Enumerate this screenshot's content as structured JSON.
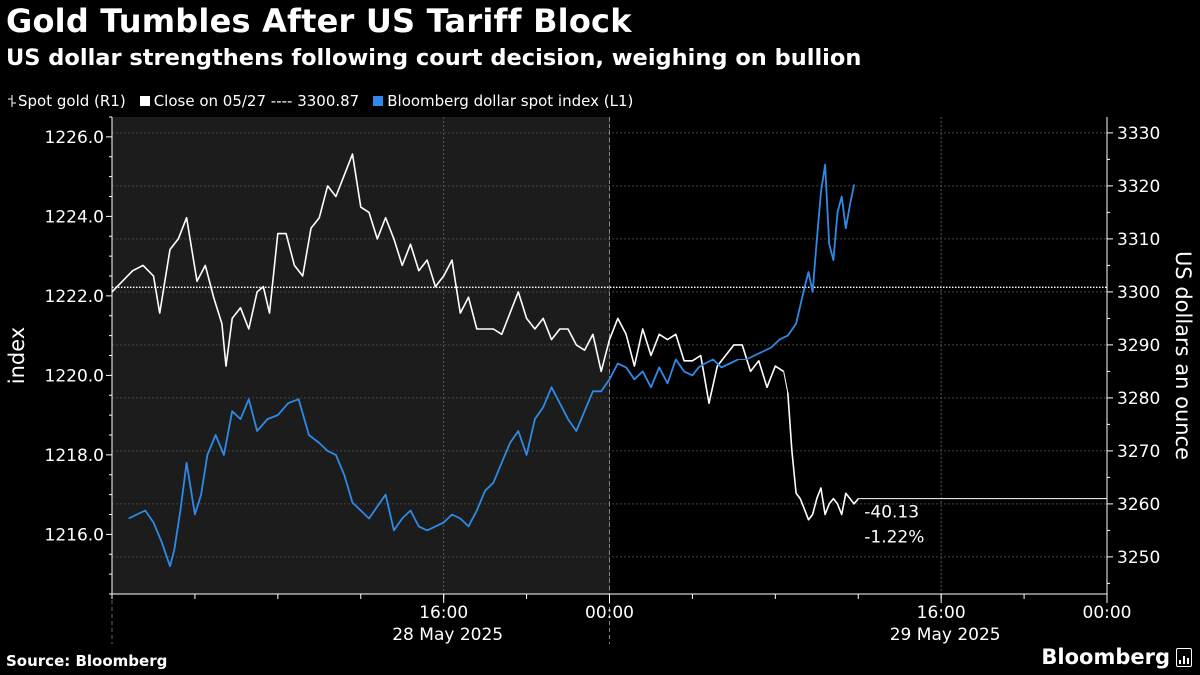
{
  "header": {
    "title": "Gold Tumbles After US Tariff Block",
    "subtitle": "US dollar strengthens following court decision, weighing on bullion"
  },
  "legend": [
    {
      "label": "Spot gold (R1)",
      "color": "#ffffff",
      "icon": "ohlc-bar-icon"
    },
    {
      "label": "Close on 05/27 ---- 3300.87",
      "color": "#ffffff",
      "icon": "square-icon"
    },
    {
      "label": "Bloomberg dollar spot index (L1)",
      "color": "#2e8ae6",
      "icon": "square-icon"
    }
  ],
  "footer": {
    "source": "Source: Bloomberg",
    "brand": "Bloomberg"
  },
  "chart_data": {
    "type": "line",
    "left_axis": {
      "label": "index",
      "ticks": [
        "1226.0",
        "1224.0",
        "1222.0",
        "1220.0",
        "1218.0",
        "1216.0"
      ],
      "tick_values": [
        1226,
        1224,
        1222,
        1220,
        1218,
        1216
      ],
      "range": [
        1214.5,
        1226.5
      ]
    },
    "right_axis": {
      "label": "US dollars an ounce",
      "ticks": [
        "3330",
        "3320",
        "3310",
        "3300",
        "3290",
        "3280",
        "3270",
        "3260",
        "3250"
      ],
      "tick_values": [
        3330,
        3320,
        3310,
        3300,
        3290,
        3280,
        3270,
        3260,
        3250
      ],
      "range": [
        3243,
        3333
      ]
    },
    "x_axis": {
      "range_hours": [
        0,
        48
      ],
      "time_ticks": [
        {
          "label": "16:00",
          "hour": 16
        },
        {
          "label": "00:00",
          "hour": 24
        },
        {
          "label": "16:00",
          "hour": 40
        },
        {
          "label": "00:00",
          "hour": 48
        }
      ],
      "day_labels": [
        {
          "label": "28 May 2025",
          "hour": 16
        },
        {
          "label": "29 May 2025",
          "hour": 40
        }
      ],
      "day_boundary_hour": 24,
      "note": "hours are from 00:00 on 28 May 2025"
    },
    "close_reference": {
      "label": "Close on 05/27",
      "value": 3300.87
    },
    "annotation": {
      "change": "-40.13",
      "change_pct": "-1.22%",
      "level": 3261
    },
    "series": [
      {
        "name": "Spot gold (R1)",
        "axis": "right",
        "color": "#ffffff",
        "x": [
          0.0,
          1.0,
          1.5,
          2.0,
          2.3,
          2.8,
          3.2,
          3.6,
          4.1,
          4.5,
          4.9,
          5.3,
          5.5,
          5.8,
          6.2,
          6.6,
          7.0,
          7.3,
          7.6,
          8.0,
          8.4,
          8.8,
          9.2,
          9.6,
          10.0,
          10.4,
          10.8,
          11.2,
          11.6,
          12.0,
          12.4,
          12.8,
          13.2,
          13.6,
          14.0,
          14.4,
          14.8,
          15.2,
          15.6,
          16.0,
          16.4,
          16.8,
          17.2,
          17.6,
          18.0,
          18.4,
          18.8,
          19.2,
          19.6,
          20.0,
          20.4,
          20.8,
          21.2,
          21.6,
          22.0,
          22.4,
          22.8,
          23.2,
          23.6,
          24.0,
          24.4,
          24.8,
          25.2,
          25.6,
          26.0,
          26.4,
          26.8,
          27.2,
          27.6,
          28.0,
          28.4,
          28.8,
          29.2,
          29.6,
          30.0,
          30.4,
          30.8,
          31.2,
          31.6,
          32.0,
          32.4,
          32.6,
          32.8,
          33.0,
          33.2,
          33.4,
          33.6,
          33.8,
          34.0,
          34.2,
          34.4,
          34.6,
          34.8,
          35.0,
          35.2,
          35.4,
          35.6,
          35.8,
          36.0
        ],
        "values": [
          3300,
          3304,
          3305,
          3303,
          3296,
          3308,
          3310,
          3314,
          3302,
          3305,
          3299,
          3294,
          3286,
          3295,
          3297,
          3293,
          3300,
          3301,
          3296,
          3311,
          3311,
          3305,
          3303,
          3312,
          3314,
          3320,
          3318,
          3322,
          3326,
          3316,
          3315,
          3310,
          3314,
          3310,
          3305,
          3309,
          3304,
          3306,
          3301,
          3303,
          3306,
          3296,
          3299,
          3293,
          3293,
          3293,
          3292,
          3296,
          3300,
          3295,
          3293,
          3295,
          3291,
          3293,
          3293,
          3290,
          3289,
          3292,
          3285,
          3291,
          3295,
          3292,
          3286,
          3293,
          3288,
          3292,
          3291,
          3292,
          3287,
          3287,
          3288,
          3279,
          3286,
          3288,
          3290,
          3290,
          3285,
          3287,
          3282,
          3286,
          3285,
          3281,
          3270,
          3262,
          3261,
          3259,
          3257,
          3258,
          3261,
          3263,
          3258,
          3260,
          3261,
          3260,
          3258,
          3262,
          3261,
          3260,
          3261
        ],
        "segments_end_index": [
          80,
          98
        ]
      },
      {
        "name": "Bloomberg dollar spot index (L1)",
        "axis": "left",
        "color": "#2e8ae6",
        "x": [
          0.8,
          1.2,
          1.6,
          2.0,
          2.4,
          2.8,
          3.0,
          3.3,
          3.6,
          4.0,
          4.3,
          4.6,
          5.0,
          5.4,
          5.8,
          6.2,
          6.6,
          7.0,
          7.5,
          8.0,
          8.5,
          9.0,
          9.5,
          10.0,
          10.4,
          10.8,
          11.2,
          11.6,
          12.0,
          12.4,
          12.8,
          13.2,
          13.6,
          14.0,
          14.4,
          14.8,
          15.2,
          15.6,
          16.0,
          16.4,
          16.8,
          17.2,
          17.6,
          18.0,
          18.4,
          18.8,
          19.2,
          19.6,
          20.0,
          20.4,
          20.8,
          21.2,
          21.6,
          22.0,
          22.4,
          22.8,
          23.2,
          23.6,
          24.0,
          24.4,
          24.8,
          25.2,
          25.6,
          26.0,
          26.4,
          26.8,
          27.2,
          27.6,
          28.0,
          28.3,
          28.6,
          29.0,
          29.4,
          29.8,
          30.2,
          30.6,
          31.0,
          31.4,
          31.8,
          32.2,
          32.6,
          33.0,
          33.4,
          33.6,
          33.8,
          34.0,
          34.2,
          34.4,
          34.6,
          34.8,
          35.0,
          35.2,
          35.4,
          35.6,
          35.8
        ],
        "values": [
          1216.4,
          1216.5,
          1216.6,
          1216.3,
          1215.8,
          1215.2,
          1215.6,
          1216.6,
          1217.8,
          1216.5,
          1217.0,
          1218.0,
          1218.5,
          1218.0,
          1219.1,
          1218.9,
          1219.4,
          1218.6,
          1218.9,
          1219.0,
          1219.3,
          1219.4,
          1218.5,
          1218.3,
          1218.1,
          1218.0,
          1217.5,
          1216.8,
          1216.6,
          1216.4,
          1216.7,
          1217.0,
          1216.1,
          1216.4,
          1216.6,
          1216.2,
          1216.1,
          1216.2,
          1216.3,
          1216.5,
          1216.4,
          1216.2,
          1216.6,
          1217.1,
          1217.3,
          1217.8,
          1218.3,
          1218.6,
          1218.0,
          1218.9,
          1219.2,
          1219.7,
          1219.3,
          1218.9,
          1218.6,
          1219.1,
          1219.6,
          1219.6,
          1219.9,
          1220.3,
          1220.2,
          1219.9,
          1220.1,
          1219.7,
          1220.2,
          1219.8,
          1220.4,
          1220.1,
          1220.0,
          1220.2,
          1220.3,
          1220.4,
          1220.2,
          1220.3,
          1220.4,
          1220.4,
          1220.5,
          1220.6,
          1220.7,
          1220.9,
          1221.0,
          1221.3,
          1222.2,
          1222.6,
          1222.1,
          1223.4,
          1224.6,
          1225.3,
          1223.3,
          1222.9,
          1224.1,
          1224.5,
          1223.7,
          1224.3,
          1224.8
        ],
        "segments_end_index": [
          74,
          94
        ]
      }
    ]
  }
}
